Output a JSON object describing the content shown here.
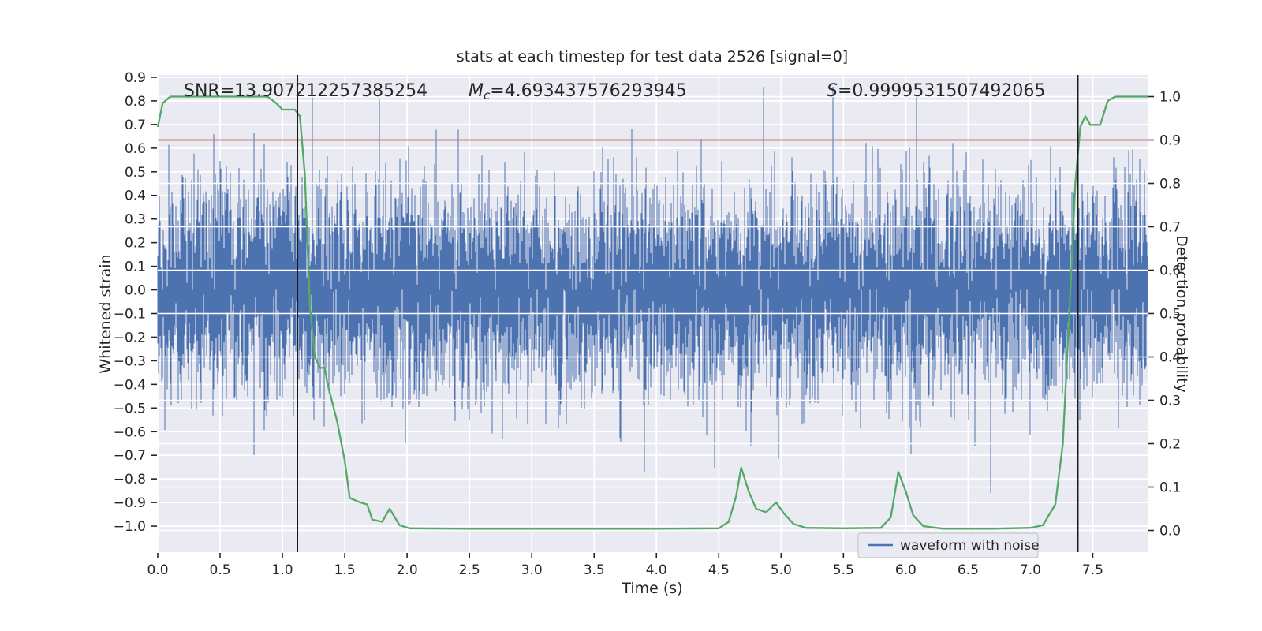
{
  "chart_data": {
    "type": "line",
    "title": "stats at each timestep for test data 2526 [signal=0]",
    "annotations": [
      {
        "label": "SNR",
        "sub": "",
        "value": "13.907212257385254",
        "italic_label": false
      },
      {
        "label": "M",
        "sub": "c",
        "value": "4.693437576293945",
        "italic_label": true
      },
      {
        "label": "S",
        "sub": "",
        "value": "0.9999531507492065",
        "italic_label": true
      }
    ],
    "xlabel": "Time (s)",
    "x_range": [
      0.0,
      7.94
    ],
    "x_ticks": [
      0.0,
      0.5,
      1.0,
      1.5,
      2.0,
      2.5,
      3.0,
      3.5,
      4.0,
      4.5,
      5.0,
      5.5,
      6.0,
      6.5,
      7.0,
      7.5
    ],
    "left_axis": {
      "label": "Whitened strain",
      "range": [
        -1.11,
        0.91
      ],
      "ticks": [
        0.9,
        0.8,
        0.7,
        0.6,
        0.5,
        0.4,
        0.3,
        0.2,
        0.1,
        0.0,
        -0.1,
        -0.2,
        -0.3,
        -0.4,
        -0.5,
        -0.6,
        -0.7,
        -0.8,
        -0.9,
        -1.0
      ]
    },
    "right_axis": {
      "label": "Detection probability",
      "range": [
        -0.05,
        1.05
      ],
      "ticks": [
        1.0,
        0.9,
        0.8,
        0.7,
        0.6,
        0.5,
        0.4,
        0.3,
        0.2,
        0.1,
        0.0
      ]
    },
    "plot_bg": "#eaeaf2",
    "grid_color": "#ffffff",
    "text_color": "#262626",
    "threshold_line": {
      "axis": "right",
      "value": 0.9,
      "color": "#c44e52"
    },
    "vlines": {
      "x": [
        1.12,
        7.38
      ],
      "color": "#1a1a1a"
    },
    "noise_series": {
      "name": "waveform with noise",
      "color": "#4c72b0",
      "axis": "left",
      "mean": 0,
      "std": 0.21,
      "samples_per_column": 6,
      "spike_prob": 0.02,
      "spike_std": 0.36,
      "clip_min": -1.05,
      "clip_max": 0.86,
      "seed": 1337
    },
    "detection_series": {
      "name": "detection probability",
      "color": "#55a868",
      "axis": "right",
      "points": [
        [
          0.0,
          0.93
        ],
        [
          0.04,
          0.985
        ],
        [
          0.1,
          1.0
        ],
        [
          0.88,
          1.0
        ],
        [
          0.95,
          0.985
        ],
        [
          1.0,
          0.97
        ],
        [
          1.1,
          0.97
        ],
        [
          1.14,
          0.955
        ],
        [
          1.18,
          0.82
        ],
        [
          1.22,
          0.52
        ],
        [
          1.26,
          0.4
        ],
        [
          1.3,
          0.375
        ],
        [
          1.34,
          0.375
        ],
        [
          1.36,
          0.34
        ],
        [
          1.44,
          0.25
        ],
        [
          1.5,
          0.16
        ],
        [
          1.54,
          0.075
        ],
        [
          1.62,
          0.065
        ],
        [
          1.68,
          0.06
        ],
        [
          1.72,
          0.025
        ],
        [
          1.8,
          0.02
        ],
        [
          1.86,
          0.05
        ],
        [
          1.94,
          0.012
        ],
        [
          2.02,
          0.005
        ],
        [
          2.5,
          0.004
        ],
        [
          3.0,
          0.004
        ],
        [
          3.5,
          0.004
        ],
        [
          4.0,
          0.004
        ],
        [
          4.5,
          0.005
        ],
        [
          4.58,
          0.02
        ],
        [
          4.64,
          0.08
        ],
        [
          4.68,
          0.145
        ],
        [
          4.74,
          0.09
        ],
        [
          4.8,
          0.05
        ],
        [
          4.88,
          0.042
        ],
        [
          4.96,
          0.065
        ],
        [
          5.02,
          0.04
        ],
        [
          5.1,
          0.015
        ],
        [
          5.2,
          0.006
        ],
        [
          5.5,
          0.005
        ],
        [
          5.8,
          0.006
        ],
        [
          5.88,
          0.03
        ],
        [
          5.94,
          0.135
        ],
        [
          6.0,
          0.09
        ],
        [
          6.06,
          0.035
        ],
        [
          6.14,
          0.01
        ],
        [
          6.3,
          0.004
        ],
        [
          6.7,
          0.004
        ],
        [
          7.0,
          0.006
        ],
        [
          7.1,
          0.012
        ],
        [
          7.2,
          0.06
        ],
        [
          7.26,
          0.2
        ],
        [
          7.32,
          0.55
        ],
        [
          7.36,
          0.8
        ],
        [
          7.4,
          0.93
        ],
        [
          7.44,
          0.955
        ],
        [
          7.48,
          0.935
        ],
        [
          7.56,
          0.935
        ],
        [
          7.62,
          0.99
        ],
        [
          7.68,
          1.0
        ],
        [
          7.94,
          1.0
        ]
      ]
    },
    "legend": {
      "location": "lower right",
      "entries": [
        {
          "label": "waveform with noise",
          "color": "#4c72b0"
        }
      ]
    }
  }
}
